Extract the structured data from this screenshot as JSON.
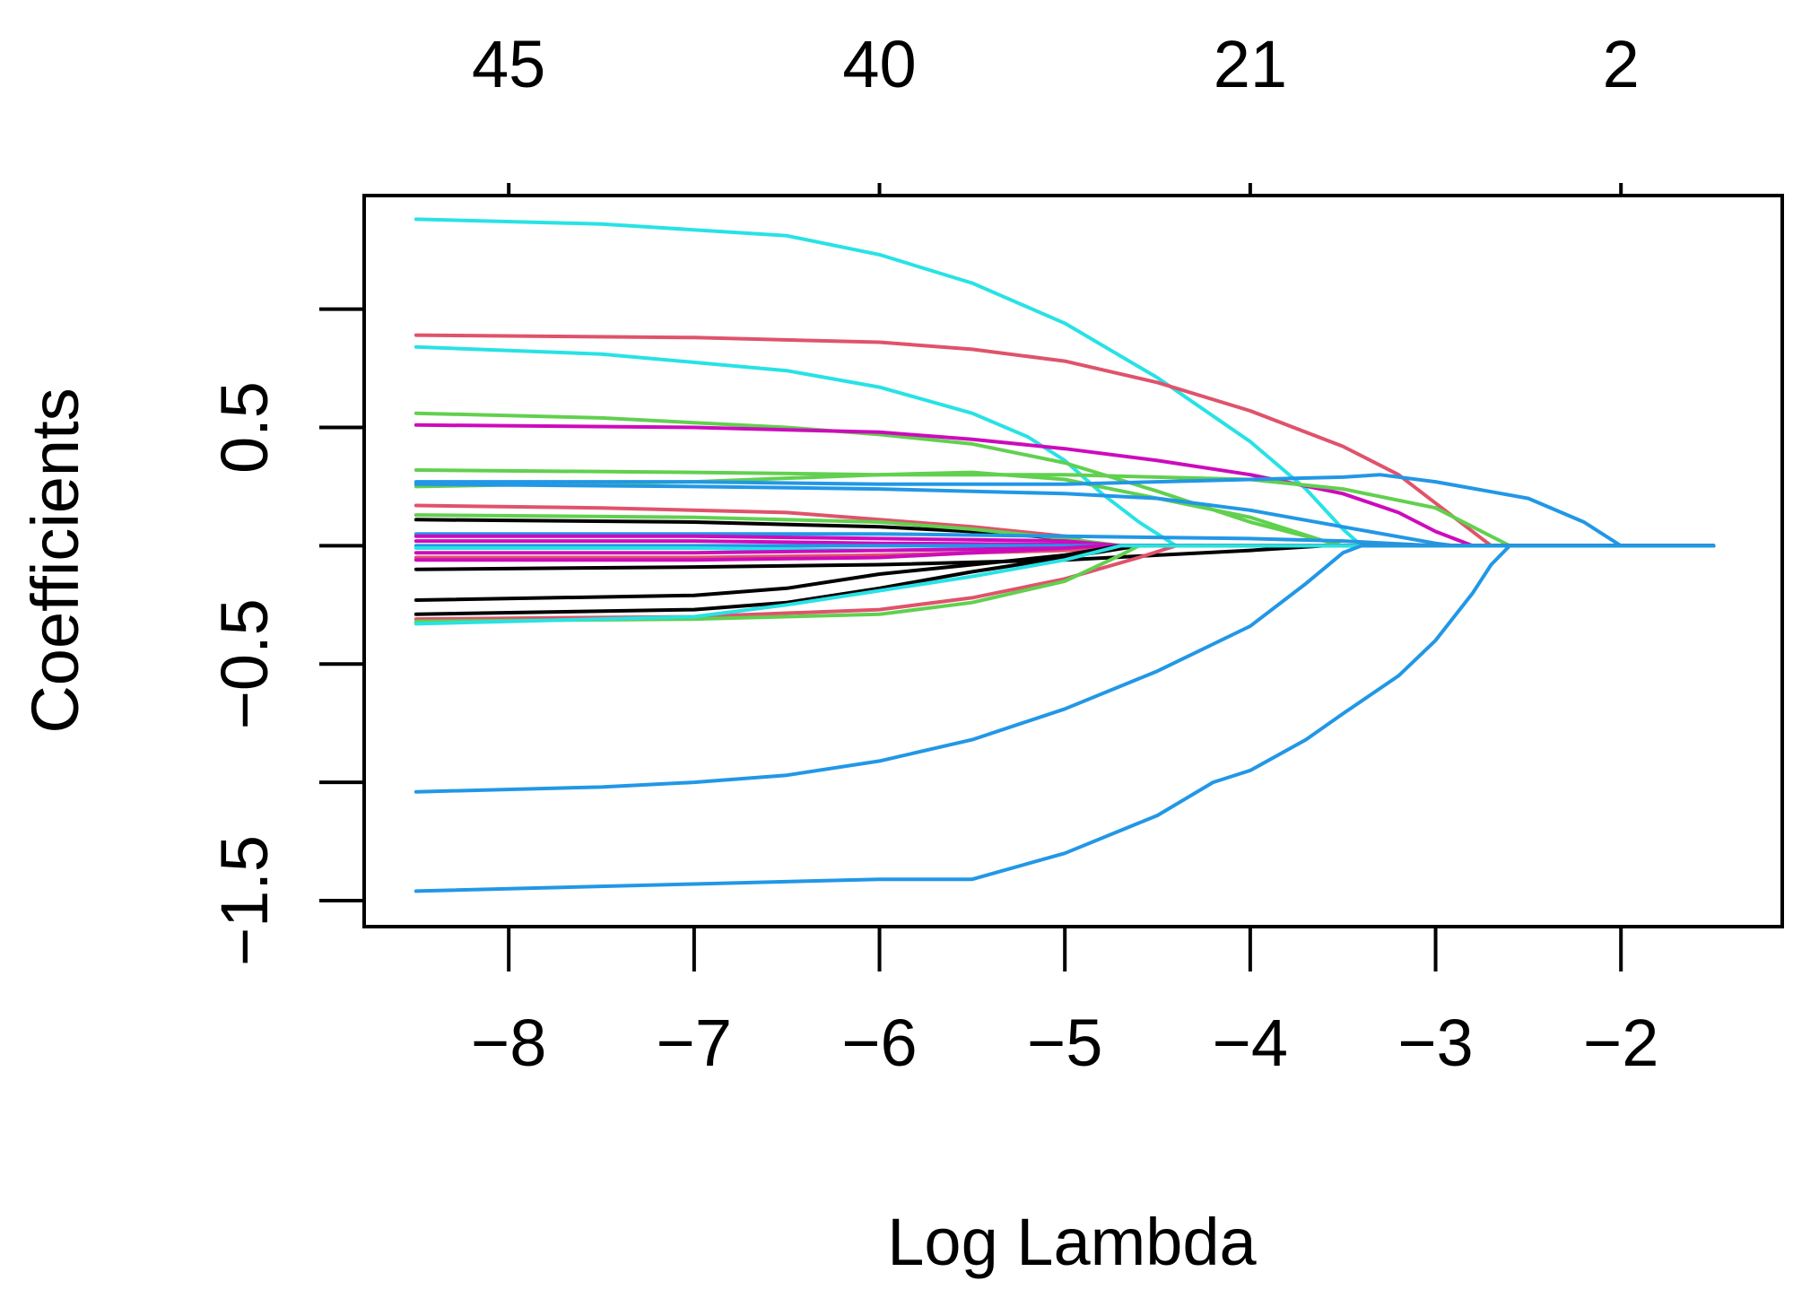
{
  "chart_data": {
    "type": "line",
    "xlabel": "Log Lambda",
    "ylabel": "Coefficients",
    "xlim": [
      -8.78,
      -1.13
    ],
    "ylim": [
      -1.61,
      1.48
    ],
    "x_ticks": [
      -8,
      -7,
      -6,
      -5,
      -4,
      -3,
      -2
    ],
    "x_tick_labels": [
      "−8",
      "−7",
      "−6",
      "−5",
      "−4",
      "−3",
      "−2"
    ],
    "y_ticks": [
      -1.5,
      -1.0,
      -0.5,
      0.0,
      0.5,
      1.0
    ],
    "y_tick_labels": [
      "−1.5",
      "",
      "−0.5",
      "",
      "0.5",
      ""
    ],
    "top_ticks": [
      -8,
      -6,
      -4,
      -2
    ],
    "top_tick_labels": [
      "45",
      "40",
      "21",
      "2"
    ],
    "grid": false,
    "colors": {
      "black": "#000000",
      "red": "#DF536B",
      "green": "#61D04F",
      "blue": "#2297E6",
      "cyan": "#28E2E5",
      "magenta": "#CD0BBC"
    },
    "series": [
      {
        "color": "#28E2E5",
        "points": [
          [
            -8.5,
            1.38
          ],
          [
            -7.5,
            1.36
          ],
          [
            -6.5,
            1.31
          ],
          [
            -6.0,
            1.23
          ],
          [
            -5.5,
            1.11
          ],
          [
            -5.0,
            0.94
          ],
          [
            -4.5,
            0.71
          ],
          [
            -4.0,
            0.44
          ],
          [
            -3.7,
            0.24
          ],
          [
            -3.5,
            0.07
          ],
          [
            -3.4,
            0.0
          ],
          [
            -1.5,
            0.0
          ]
        ]
      },
      {
        "color": "#DF536B",
        "points": [
          [
            -8.5,
            0.89
          ],
          [
            -7.0,
            0.88
          ],
          [
            -6.0,
            0.86
          ],
          [
            -5.5,
            0.83
          ],
          [
            -5.0,
            0.78
          ],
          [
            -4.5,
            0.69
          ],
          [
            -4.0,
            0.57
          ],
          [
            -3.5,
            0.42
          ],
          [
            -3.2,
            0.3
          ],
          [
            -3.0,
            0.18
          ],
          [
            -2.7,
            0.0
          ],
          [
            -1.5,
            0.0
          ]
        ]
      },
      {
        "color": "#28E2E5",
        "points": [
          [
            -8.5,
            0.84
          ],
          [
            -7.5,
            0.81
          ],
          [
            -6.5,
            0.74
          ],
          [
            -6.0,
            0.67
          ],
          [
            -5.5,
            0.56
          ],
          [
            -5.2,
            0.46
          ],
          [
            -5.0,
            0.36
          ],
          [
            -4.8,
            0.22
          ],
          [
            -4.6,
            0.1
          ],
          [
            -4.4,
            0.0
          ],
          [
            -1.5,
            0.0
          ]
        ]
      },
      {
        "color": "#61D04F",
        "points": [
          [
            -8.5,
            0.56
          ],
          [
            -7.5,
            0.54
          ],
          [
            -6.5,
            0.5
          ],
          [
            -6.0,
            0.47
          ],
          [
            -5.5,
            0.43
          ],
          [
            -5.0,
            0.35
          ],
          [
            -4.5,
            0.23
          ],
          [
            -4.0,
            0.1
          ],
          [
            -3.6,
            0.02
          ],
          [
            -3.5,
            0.0
          ],
          [
            -1.5,
            0.0
          ]
        ]
      },
      {
        "color": "#CD0BBC",
        "points": [
          [
            -8.5,
            0.51
          ],
          [
            -7.0,
            0.5
          ],
          [
            -6.0,
            0.48
          ],
          [
            -5.5,
            0.45
          ],
          [
            -5.0,
            0.41
          ],
          [
            -4.5,
            0.36
          ],
          [
            -4.0,
            0.3
          ],
          [
            -3.5,
            0.22
          ],
          [
            -3.2,
            0.14
          ],
          [
            -3.0,
            0.06
          ],
          [
            -2.8,
            0.0
          ],
          [
            -1.5,
            0.0
          ]
        ]
      },
      {
        "color": "#61D04F",
        "points": [
          [
            -8.5,
            0.32
          ],
          [
            -7.0,
            0.31
          ],
          [
            -6.0,
            0.3
          ],
          [
            -5.0,
            0.3
          ],
          [
            -4.0,
            0.28
          ],
          [
            -3.5,
            0.24
          ],
          [
            -3.0,
            0.16
          ],
          [
            -2.8,
            0.08
          ],
          [
            -2.6,
            0.0
          ],
          [
            -1.5,
            0.0
          ]
        ]
      },
      {
        "color": "#61D04F",
        "points": [
          [
            -8.5,
            0.25
          ],
          [
            -7.0,
            0.27
          ],
          [
            -6.0,
            0.3
          ],
          [
            -5.5,
            0.31
          ],
          [
            -5.0,
            0.28
          ],
          [
            -4.5,
            0.2
          ],
          [
            -4.0,
            0.12
          ],
          [
            -3.6,
            0.02
          ],
          [
            -3.5,
            0.0
          ],
          [
            -1.5,
            0.0
          ]
        ]
      },
      {
        "color": "#2297E6",
        "points": [
          [
            -8.5,
            0.27
          ],
          [
            -7.0,
            0.27
          ],
          [
            -6.0,
            0.26
          ],
          [
            -5.0,
            0.26
          ],
          [
            -4.5,
            0.27
          ],
          [
            -4.0,
            0.28
          ],
          [
            -3.5,
            0.29
          ],
          [
            -3.3,
            0.3
          ],
          [
            -3.0,
            0.27
          ],
          [
            -2.5,
            0.2
          ],
          [
            -2.2,
            0.1
          ],
          [
            -2.0,
            0.0
          ],
          [
            -1.5,
            0.0
          ]
        ]
      },
      {
        "color": "#2297E6",
        "points": [
          [
            -8.5,
            0.26
          ],
          [
            -7.0,
            0.25
          ],
          [
            -6.0,
            0.24
          ],
          [
            -5.0,
            0.22
          ],
          [
            -4.5,
            0.2
          ],
          [
            -4.0,
            0.15
          ],
          [
            -3.5,
            0.08
          ],
          [
            -3.0,
            0.01
          ],
          [
            -2.9,
            0.0
          ],
          [
            -1.5,
            0.0
          ]
        ]
      },
      {
        "color": "#DF536B",
        "points": [
          [
            -8.5,
            0.17
          ],
          [
            -7.5,
            0.16
          ],
          [
            -6.5,
            0.14
          ],
          [
            -6.0,
            0.11
          ],
          [
            -5.5,
            0.08
          ],
          [
            -5.0,
            0.04
          ],
          [
            -4.8,
            0.0
          ],
          [
            -1.5,
            0.0
          ]
        ]
      },
      {
        "color": "#000000",
        "points": [
          [
            -8.5,
            0.11
          ],
          [
            -7.0,
            0.1
          ],
          [
            -6.0,
            0.08
          ],
          [
            -5.5,
            0.06
          ],
          [
            -5.0,
            0.03
          ],
          [
            -4.8,
            0.0
          ],
          [
            -1.5,
            0.0
          ]
        ]
      },
      {
        "color": "#61D04F",
        "points": [
          [
            -8.5,
            0.13
          ],
          [
            -7.0,
            0.12
          ],
          [
            -6.0,
            0.1
          ],
          [
            -5.5,
            0.07
          ],
          [
            -5.0,
            0.03
          ],
          [
            -4.7,
            0.0
          ],
          [
            -1.5,
            0.0
          ]
        ]
      },
      {
        "color": "#2297E6",
        "points": [
          [
            -8.5,
            0.05
          ],
          [
            -7.0,
            0.05
          ],
          [
            -6.0,
            0.05
          ],
          [
            -5.0,
            0.04
          ],
          [
            -4.0,
            0.03
          ],
          [
            -3.5,
            0.02
          ],
          [
            -3.0,
            0.0
          ],
          [
            -1.5,
            0.0
          ]
        ]
      },
      {
        "color": "#CD0BBC",
        "points": [
          [
            -8.5,
            0.04
          ],
          [
            -7.0,
            0.04
          ],
          [
            -6.0,
            0.03
          ],
          [
            -5.0,
            0.02
          ],
          [
            -4.7,
            0.0
          ],
          [
            -1.5,
            0.0
          ]
        ]
      },
      {
        "color": "#CD0BBC",
        "points": [
          [
            -8.5,
            0.02
          ],
          [
            -7.0,
            0.02
          ],
          [
            -6.0,
            0.01
          ],
          [
            -5.0,
            0.005
          ],
          [
            -4.8,
            0.0
          ],
          [
            -1.5,
            0.0
          ]
        ]
      },
      {
        "color": "#2297E6",
        "points": [
          [
            -8.5,
            0.0
          ],
          [
            -1.5,
            0.0
          ]
        ]
      },
      {
        "color": "#28E2E5",
        "points": [
          [
            -8.5,
            -0.01
          ],
          [
            -7.0,
            -0.01
          ],
          [
            -6.0,
            -0.02
          ],
          [
            -5.0,
            -0.01
          ],
          [
            -4.6,
            0.0
          ],
          [
            -1.5,
            0.0
          ]
        ]
      },
      {
        "color": "#CD0BBC",
        "points": [
          [
            -8.5,
            -0.03
          ],
          [
            -7.0,
            -0.03
          ],
          [
            -6.0,
            -0.02
          ],
          [
            -5.0,
            -0.01
          ],
          [
            -4.7,
            0.0
          ],
          [
            -1.5,
            0.0
          ]
        ]
      },
      {
        "color": "#DF536B",
        "points": [
          [
            -8.5,
            -0.05
          ],
          [
            -7.0,
            -0.05
          ],
          [
            -6.0,
            -0.04
          ],
          [
            -5.0,
            -0.02
          ],
          [
            -4.6,
            0.0
          ],
          [
            -1.5,
            0.0
          ]
        ]
      },
      {
        "color": "#CD0BBC",
        "points": [
          [
            -8.5,
            -0.06
          ],
          [
            -7.0,
            -0.06
          ],
          [
            -6.0,
            -0.05
          ],
          [
            -5.5,
            -0.03
          ],
          [
            -5.0,
            -0.01
          ],
          [
            -4.8,
            0.0
          ],
          [
            -1.5,
            0.0
          ]
        ]
      },
      {
        "color": "#000000",
        "points": [
          [
            -8.5,
            -0.1
          ],
          [
            -7.0,
            -0.09
          ],
          [
            -6.0,
            -0.08
          ],
          [
            -5.0,
            -0.06
          ],
          [
            -4.5,
            -0.04
          ],
          [
            -4.0,
            -0.02
          ],
          [
            -3.6,
            0.0
          ],
          [
            -1.5,
            0.0
          ]
        ]
      },
      {
        "color": "#000000",
        "points": [
          [
            -8.5,
            -0.23
          ],
          [
            -7.0,
            -0.21
          ],
          [
            -6.5,
            -0.18
          ],
          [
            -6.0,
            -0.12
          ],
          [
            -5.5,
            -0.08
          ],
          [
            -5.0,
            -0.04
          ],
          [
            -4.7,
            0.0
          ],
          [
            -1.5,
            0.0
          ]
        ]
      },
      {
        "color": "#000000",
        "points": [
          [
            -8.5,
            -0.29
          ],
          [
            -7.0,
            -0.27
          ],
          [
            -6.5,
            -0.24
          ],
          [
            -6.0,
            -0.18
          ],
          [
            -5.5,
            -0.11
          ],
          [
            -5.0,
            -0.05
          ],
          [
            -4.6,
            0.0
          ],
          [
            -1.5,
            0.0
          ]
        ]
      },
      {
        "color": "#DF536B",
        "points": [
          [
            -8.5,
            -0.31
          ],
          [
            -7.0,
            -0.3
          ],
          [
            -6.0,
            -0.27
          ],
          [
            -5.5,
            -0.22
          ],
          [
            -5.0,
            -0.14
          ],
          [
            -4.6,
            -0.05
          ],
          [
            -4.4,
            0.0
          ],
          [
            -1.5,
            0.0
          ]
        ]
      },
      {
        "color": "#61D04F",
        "points": [
          [
            -8.5,
            -0.32
          ],
          [
            -7.0,
            -0.31
          ],
          [
            -6.0,
            -0.29
          ],
          [
            -5.5,
            -0.24
          ],
          [
            -5.0,
            -0.15
          ],
          [
            -4.7,
            -0.04
          ],
          [
            -4.6,
            0.0
          ],
          [
            -1.5,
            0.0
          ]
        ]
      },
      {
        "color": "#28E2E5",
        "points": [
          [
            -8.5,
            -0.33
          ],
          [
            -7.0,
            -0.3
          ],
          [
            -6.5,
            -0.25
          ],
          [
            -6.0,
            -0.19
          ],
          [
            -5.5,
            -0.13
          ],
          [
            -5.0,
            -0.06
          ],
          [
            -4.7,
            0.0
          ],
          [
            -1.5,
            0.0
          ]
        ]
      },
      {
        "color": "#2297E6",
        "points": [
          [
            -8.5,
            -1.04
          ],
          [
            -7.5,
            -1.02
          ],
          [
            -7.0,
            -1.0
          ],
          [
            -6.5,
            -0.97
          ],
          [
            -6.0,
            -0.91
          ],
          [
            -5.5,
            -0.82
          ],
          [
            -5.0,
            -0.69
          ],
          [
            -4.5,
            -0.53
          ],
          [
            -4.0,
            -0.34
          ],
          [
            -3.7,
            -0.16
          ],
          [
            -3.5,
            -0.03
          ],
          [
            -3.4,
            0.0
          ],
          [
            -1.5,
            0.0
          ]
        ]
      },
      {
        "color": "#2297E6",
        "points": [
          [
            -8.5,
            -1.46
          ],
          [
            -7.0,
            -1.43
          ],
          [
            -6.0,
            -1.41
          ],
          [
            -5.5,
            -1.41
          ],
          [
            -5.0,
            -1.3
          ],
          [
            -4.5,
            -1.14
          ],
          [
            -4.2,
            -1.0
          ],
          [
            -4.0,
            -0.95
          ],
          [
            -3.7,
            -0.82
          ],
          [
            -3.5,
            -0.71
          ],
          [
            -3.2,
            -0.55
          ],
          [
            -3.0,
            -0.4
          ],
          [
            -2.8,
            -0.2
          ],
          [
            -2.7,
            -0.08
          ],
          [
            -2.6,
            0.0
          ],
          [
            -1.5,
            0.0
          ]
        ]
      }
    ]
  }
}
